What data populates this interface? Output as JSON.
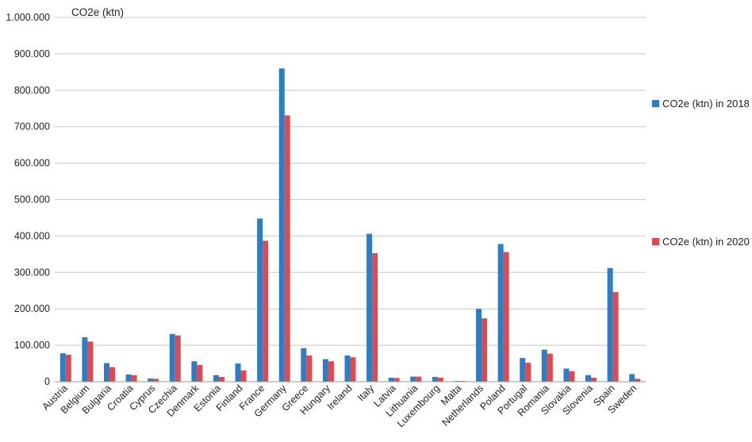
{
  "chart_data": {
    "type": "bar",
    "ylabel": "CO2e (ktn)",
    "ylim": [
      0,
      1000000
    ],
    "ytick_step": 100000,
    "ytick_labels": [
      "0",
      "100.000",
      "200.000",
      "300.000",
      "400.000",
      "500.000",
      "600.000",
      "700.000",
      "800.000",
      "900.000",
      "1.000.000"
    ],
    "grid": true,
    "legend_position": "right",
    "categories": [
      "Austria",
      "Belgium",
      "Bulgaria",
      "Croatia",
      "Cyprus",
      "Czechia",
      "Denmark",
      "Estonia",
      "Finland",
      "France",
      "Germany",
      "Greece",
      "Hungary",
      "Ireland",
      "Italy",
      "Latvia",
      "Lithuania",
      "Luxembourg",
      "Malta",
      "Netherlands",
      "Poland",
      "Portugal",
      "Romania",
      "Slovakia",
      "Slovenia",
      "Spain",
      "Sweden"
    ],
    "series": [
      {
        "name": "CO2e (ktn) in 2018",
        "color": "#2e7cc4",
        "values": [
          78000,
          122000,
          51000,
          20000,
          9000,
          131000,
          56000,
          18000,
          50000,
          448000,
          860000,
          92000,
          62000,
          72000,
          406000,
          11000,
          14000,
          13000,
          2000,
          200000,
          378000,
          65000,
          88000,
          36000,
          18000,
          312000,
          21000
        ]
      },
      {
        "name": "CO2e (ktn) in 2020",
        "color": "#e04a4f",
        "values": [
          74000,
          110000,
          40000,
          18000,
          8000,
          127000,
          46000,
          13000,
          31000,
          387000,
          731000,
          72000,
          56000,
          67000,
          353000,
          10000,
          14000,
          11000,
          2000,
          174000,
          356000,
          52000,
          77000,
          29000,
          11000,
          246000,
          8000
        ]
      }
    ]
  }
}
